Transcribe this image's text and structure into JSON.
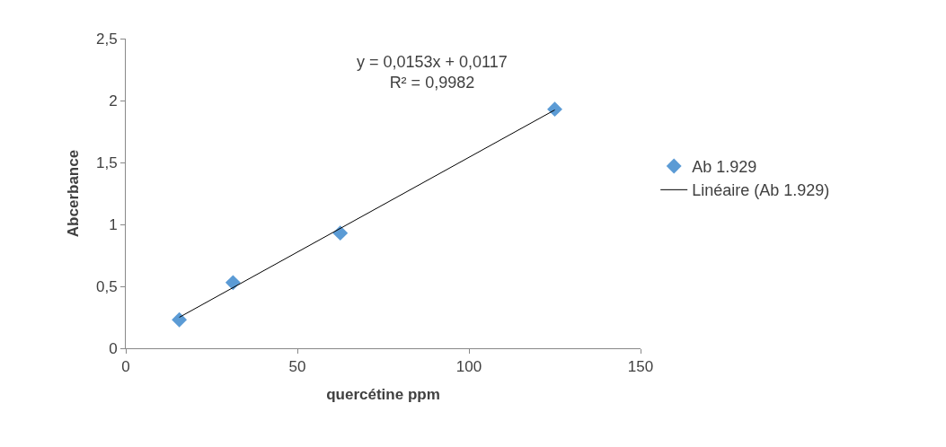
{
  "chart_data": {
    "type": "scatter",
    "xlabel": "quercétine ppm",
    "ylabel": "Abcerbance",
    "x": [
      15.6,
      31.25,
      62.5,
      125
    ],
    "series": [
      {
        "name": "Ab 1.929",
        "color": "#5b9bd5",
        "marker": "diamond",
        "values": [
          0.23,
          0.53,
          0.93,
          1.93
        ]
      },
      {
        "name": "Linéaire (Ab 1.929)",
        "type": "line",
        "color": "#000000",
        "marker": "none",
        "line_style": "solid",
        "x": [
          15.6,
          125
        ],
        "values": [
          0.25,
          1.924
        ]
      }
    ],
    "annotations": [
      "y = 0,0153x + 0,0117\nR² = 0,9982"
    ],
    "xlim": [
      0,
      150
    ],
    "xticks": [
      0,
      50,
      100,
      150
    ],
    "ylim": [
      0,
      2.5
    ],
    "yticks": [
      0,
      {
        "value": 0.5,
        "label": "0,5"
      },
      1,
      {
        "value": 1.5,
        "label": "1,5"
      },
      2,
      {
        "value": 2.5,
        "label": "2,5"
      }
    ],
    "grid": false,
    "legend": "right"
  }
}
